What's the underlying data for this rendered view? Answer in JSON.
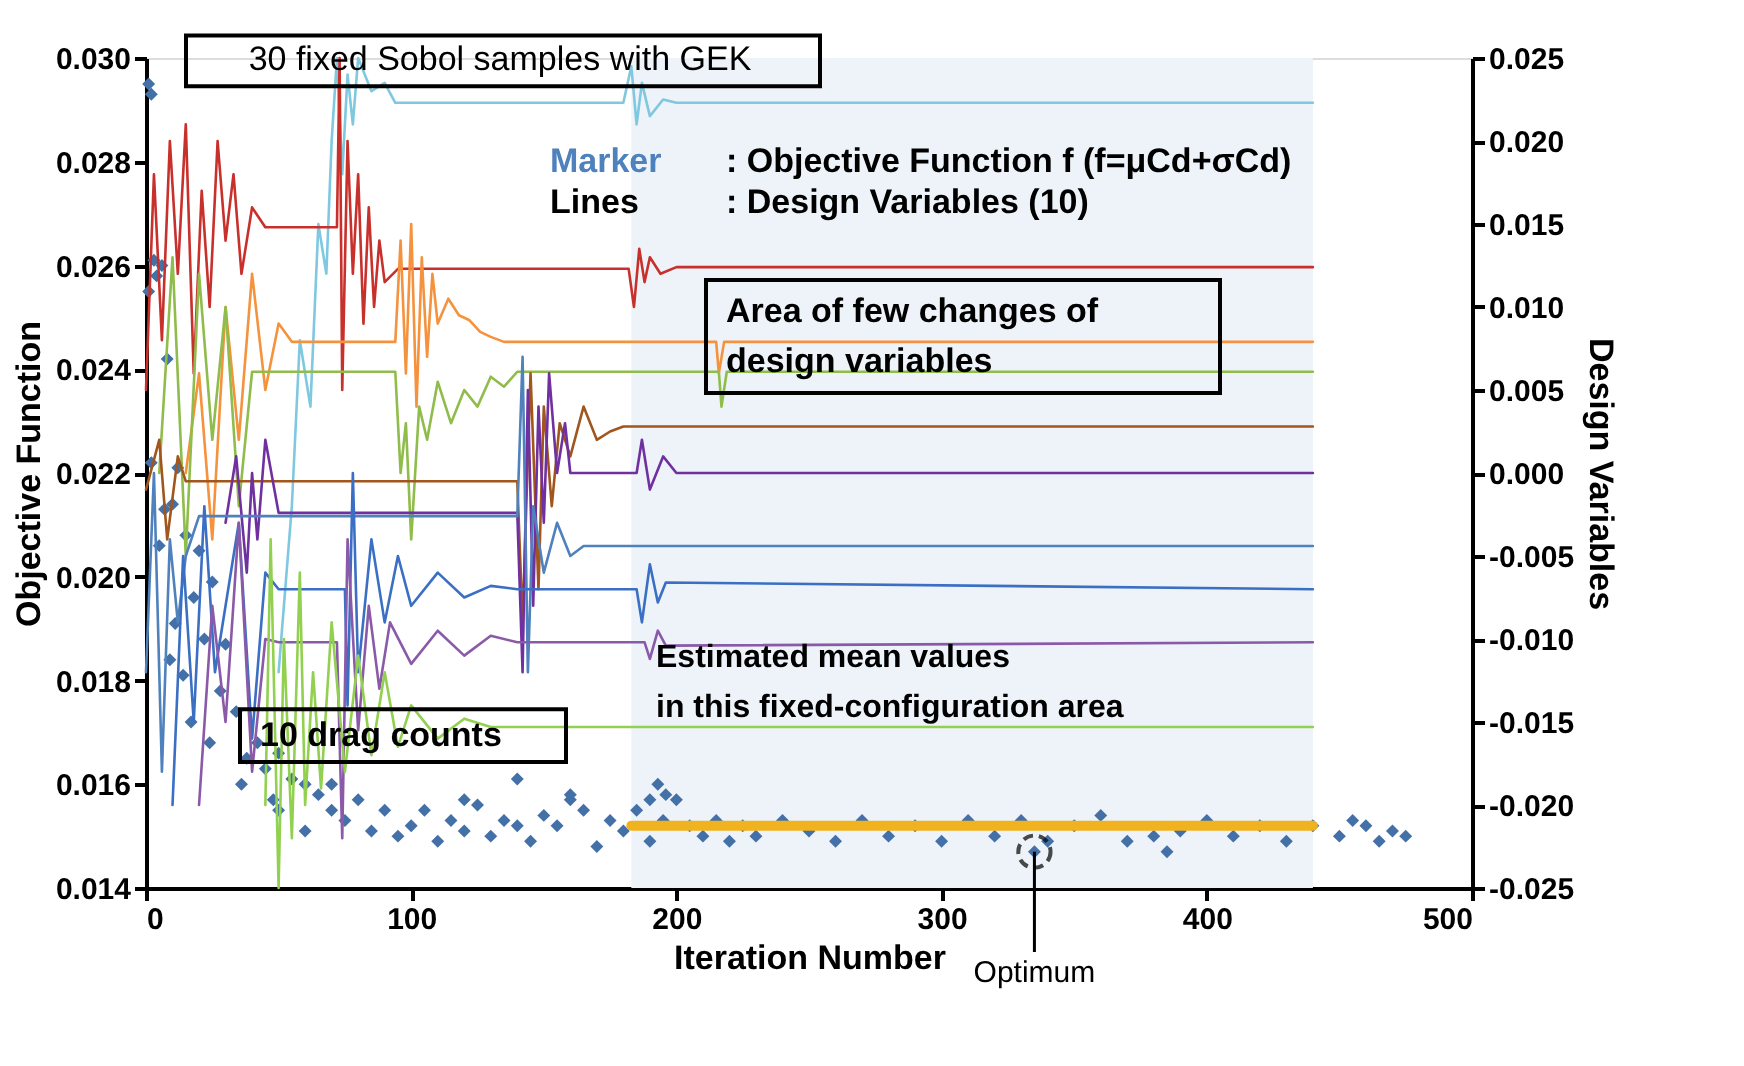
{
  "chart_data": {
    "type": "scatter",
    "xlabel": "Iteration Number",
    "ylabel": "Objective Function",
    "y2label": "Design Variables",
    "xlim": [
      0,
      500
    ],
    "xticks": [
      0,
      100,
      200,
      300,
      400,
      500
    ],
    "ylim": [
      0.014,
      0.03
    ],
    "yticks": [
      {
        "value": 0.014,
        "label": "0.014"
      },
      {
        "value": 0.016,
        "label": "0.016"
      },
      {
        "value": 0.018,
        "label": "0.018"
      },
      {
        "value": 0.02,
        "label": "0.020"
      },
      {
        "value": 0.022,
        "label": "0.022"
      },
      {
        "value": 0.024,
        "label": "0.024"
      },
      {
        "value": 0.026,
        "label": "0.026"
      },
      {
        "value": 0.028,
        "label": "0.028"
      },
      {
        "value": 0.03,
        "label": "0.030"
      }
    ],
    "y2lim": [
      -0.025,
      0.025
    ],
    "y2ticks": [
      {
        "value": -0.025,
        "label": "-0.025"
      },
      {
        "value": -0.02,
        "label": "-0.020"
      },
      {
        "value": -0.015,
        "label": "-0.015"
      },
      {
        "value": -0.01,
        "label": "-0.010"
      },
      {
        "value": -0.005,
        "label": "-0.005"
      },
      {
        "value": 0,
        "label": "0.000"
      },
      {
        "value": 0.005,
        "label": "0.005"
      },
      {
        "value": 0.01,
        "label": "0.010"
      },
      {
        "value": 0.015,
        "label": "0.015"
      },
      {
        "value": 0.02,
        "label": "0.020"
      },
      {
        "value": 0.025,
        "label": "0.025"
      }
    ],
    "grid": false,
    "bands": [
      {
        "axis": "x",
        "from": 183,
        "to": 440,
        "color": "#edf3f8"
      }
    ],
    "series": [
      {
        "marker": "diamond",
        "color": "#4470a8",
        "x": [
          1,
          2,
          3,
          1,
          4,
          6,
          8,
          2,
          10,
          12,
          5,
          7,
          15,
          20,
          25,
          18,
          11,
          22,
          9,
          14,
          30,
          28,
          34,
          17,
          24,
          38,
          42,
          45,
          50,
          36,
          55,
          48,
          60,
          65,
          70,
          75,
          80,
          85,
          90,
          95,
          100,
          105,
          110,
          115,
          120,
          125,
          130,
          135,
          140,
          145,
          150,
          155,
          160,
          165,
          170,
          175,
          180,
          185,
          190,
          195,
          200,
          205,
          210,
          215,
          220,
          225,
          230,
          240,
          250,
          260,
          270,
          280,
          290,
          300,
          310,
          320,
          330,
          335,
          340,
          350,
          360,
          370,
          380,
          385,
          390,
          400,
          410,
          420,
          430,
          440,
          450,
          455,
          460,
          465,
          470,
          475,
          140,
          160,
          50,
          60,
          70,
          120,
          190,
          196,
          193
        ],
        "values": [
          0.0295,
          0.0293,
          0.0261,
          0.0255,
          0.0258,
          0.026,
          0.0242,
          0.0222,
          0.0214,
          0.0221,
          0.0206,
          0.0213,
          0.0208,
          0.0205,
          0.0199,
          0.0196,
          0.0191,
          0.0188,
          0.0184,
          0.0181,
          0.0187,
          0.0178,
          0.0174,
          0.0172,
          0.0168,
          0.0165,
          0.0168,
          0.0163,
          0.0166,
          0.016,
          0.0161,
          0.0157,
          0.016,
          0.0158,
          0.0155,
          0.0153,
          0.0157,
          0.0151,
          0.0155,
          0.015,
          0.0152,
          0.0155,
          0.0149,
          0.0153,
          0.0151,
          0.0156,
          0.015,
          0.0153,
          0.0152,
          0.0149,
          0.0154,
          0.0152,
          0.0158,
          0.0155,
          0.0148,
          0.0153,
          0.0151,
          0.0155,
          0.0149,
          0.0153,
          0.0157,
          0.0152,
          0.015,
          0.0153,
          0.0149,
          0.0152,
          0.015,
          0.0153,
          0.0151,
          0.0149,
          0.0153,
          0.015,
          0.0152,
          0.0149,
          0.0153,
          0.015,
          0.0153,
          0.0147,
          0.0149,
          0.0152,
          0.0154,
          0.0149,
          0.015,
          0.0147,
          0.0151,
          0.0153,
          0.015,
          0.0152,
          0.0149,
          0.0152,
          0.015,
          0.0153,
          0.0152,
          0.0149,
          0.0151,
          0.015,
          0.0161,
          0.0157,
          0.0155,
          0.0151,
          0.016,
          0.0157,
          0.0157,
          0.0158,
          0.016
        ]
      },
      {
        "type": "line",
        "axis": "y2",
        "marker": "none",
        "line_style": "solid",
        "color": "#7fc8e0",
        "x": [
          50,
          55,
          58,
          62,
          65,
          68,
          70,
          72,
          74,
          76,
          78,
          80,
          85,
          90,
          94,
          150,
          180,
          183,
          185,
          187,
          190,
          195,
          200,
          440
        ],
        "values": [
          -0.012,
          -0.002,
          0.008,
          0.004,
          0.015,
          0.012,
          0.02,
          0.025,
          0.018,
          0.024,
          0.021,
          0.025,
          0.023,
          0.0235,
          0.0223,
          0.0223,
          0.0223,
          0.0245,
          0.021,
          0.0235,
          0.0215,
          0.0225,
          0.0223,
          0.0223
        ]
      },
      {
        "type": "line",
        "axis": "y2",
        "marker": "none",
        "line_style": "solid",
        "color": "#c8302c",
        "x": [
          0,
          3,
          6,
          9,
          12,
          15,
          18,
          21,
          24,
          27,
          30,
          33,
          36,
          40,
          45,
          72,
          73,
          74,
          76,
          78,
          80,
          82,
          84,
          86,
          88,
          90,
          95,
          182,
          184,
          186,
          188,
          190,
          194,
          200,
          440
        ],
        "values": [
          0.005,
          0.018,
          0.008,
          0.02,
          0.012,
          0.021,
          0.006,
          0.017,
          0.01,
          0.02,
          0.014,
          0.018,
          0.012,
          0.016,
          0.0148,
          0.0148,
          0.025,
          0.005,
          0.02,
          0.012,
          0.018,
          0.009,
          0.016,
          0.01,
          0.014,
          0.0115,
          0.0123,
          0.0123,
          0.01,
          0.0135,
          0.0115,
          0.013,
          0.012,
          0.0124,
          0.0124
        ]
      },
      {
        "type": "line",
        "axis": "y2",
        "marker": "none",
        "line_style": "solid",
        "color": "#f5923e",
        "x": [
          15,
          20,
          25,
          30,
          35,
          40,
          45,
          50,
          55,
          94,
          96,
          98,
          100,
          102,
          104,
          106,
          108,
          110,
          114,
          118,
          122,
          126,
          130,
          135,
          215,
          216,
          218,
          440
        ],
        "values": [
          0.0,
          0.006,
          -0.004,
          0.01,
          0.002,
          0.012,
          0.005,
          0.009,
          0.0079,
          0.0079,
          0.014,
          0.006,
          0.015,
          0.004,
          0.013,
          0.007,
          0.012,
          0.009,
          0.0105,
          0.0095,
          0.0092,
          0.0085,
          0.0082,
          0.0079,
          0.0079,
          0.006,
          0.0079,
          0.0079
        ]
      },
      {
        "type": "line",
        "axis": "y2",
        "marker": "none",
        "line_style": "solid",
        "color": "#8fbc4a",
        "x": [
          5,
          10,
          15,
          20,
          25,
          30,
          35,
          40,
          94,
          96,
          98,
          100,
          103,
          106,
          110,
          115,
          120,
          125,
          130,
          135,
          140,
          216,
          217,
          219,
          440
        ],
        "values": [
          0.0,
          0.013,
          -0.005,
          0.012,
          0.002,
          0.01,
          -0.002,
          0.0061,
          0.0061,
          0.0,
          0.003,
          -0.004,
          0.004,
          0.002,
          0.0055,
          0.003,
          0.005,
          0.004,
          0.0058,
          0.0052,
          0.0061,
          0.0061,
          0.004,
          0.0061,
          0.0061
        ]
      },
      {
        "type": "line",
        "axis": "y2",
        "marker": "none",
        "line_style": "solid",
        "color": "#a0561c",
        "x": [
          0,
          5,
          8,
          12,
          15,
          140,
          142,
          145,
          148,
          150,
          153,
          156,
          160,
          165,
          170,
          175,
          180,
          440
        ],
        "values": [
          -0.001,
          0.002,
          -0.004,
          0.001,
          -0.0005,
          -0.0005,
          -0.009,
          0.006,
          -0.007,
          0.004,
          -0.002,
          0.003,
          0.001,
          0.004,
          0.002,
          0.0025,
          0.0028,
          0.0028
        ]
      },
      {
        "type": "line",
        "axis": "y2",
        "marker": "none",
        "line_style": "solid",
        "color": "#7030a0",
        "x": [
          30,
          34,
          38,
          40,
          42,
          45,
          50,
          140,
          142,
          144,
          146,
          148,
          150,
          152,
          155,
          158,
          160,
          165,
          170,
          175,
          185,
          187,
          190,
          195,
          200,
          440
        ],
        "values": [
          -0.003,
          0.001,
          -0.006,
          0.0,
          -0.004,
          0.002,
          -0.0024,
          -0.0024,
          -0.012,
          0.005,
          -0.008,
          0.004,
          -0.003,
          0.006,
          0.0,
          0.003,
          0.0,
          0.0,
          0.0,
          0.0,
          0.0,
          0.002,
          -0.001,
          0.001,
          0.0,
          0.0
        ]
      },
      {
        "type": "line",
        "axis": "y2",
        "marker": "none",
        "line_style": "solid",
        "color": "#4f81bd",
        "x": [
          0,
          3,
          6,
          9,
          12,
          15,
          20,
          140,
          142,
          144,
          146,
          150,
          155,
          160,
          165,
          440
        ],
        "values": [
          -0.012,
          0.0,
          -0.018,
          -0.004,
          -0.009,
          -0.005,
          -0.0026,
          -0.0026,
          0.007,
          -0.012,
          -0.002,
          -0.006,
          -0.003,
          -0.005,
          -0.0044,
          -0.0044
        ]
      },
      {
        "type": "line",
        "axis": "y2",
        "marker": "none",
        "line_style": "solid",
        "color": "#3a6fc4",
        "x": [
          10,
          14,
          18,
          22,
          26,
          30,
          35,
          40,
          45,
          50,
          75,
          76,
          78,
          80,
          85,
          90,
          95,
          100,
          110,
          120,
          130,
          140,
          185,
          187,
          190,
          193,
          196,
          440
        ],
        "values": [
          -0.02,
          -0.005,
          -0.015,
          -0.002,
          -0.012,
          -0.008,
          -0.003,
          -0.016,
          -0.006,
          -0.007,
          -0.007,
          -0.014,
          0.0,
          -0.012,
          -0.004,
          -0.009,
          -0.005,
          -0.008,
          -0.006,
          -0.0075,
          -0.0068,
          -0.007,
          -0.007,
          -0.009,
          -0.0055,
          -0.0078,
          -0.0066,
          -0.007
        ]
      },
      {
        "type": "line",
        "axis": "y2",
        "marker": "none",
        "line_style": "solid",
        "color": "#8a5aa8",
        "x": [
          20,
          25,
          30,
          35,
          40,
          45,
          50,
          72,
          74,
          76,
          80,
          84,
          88,
          92,
          100,
          110,
          120,
          130,
          140,
          188,
          190,
          193,
          196,
          440
        ],
        "values": [
          -0.02,
          -0.008,
          -0.015,
          -0.003,
          -0.018,
          -0.01,
          -0.0102,
          -0.0102,
          -0.022,
          -0.004,
          -0.0155,
          -0.008,
          -0.013,
          -0.009,
          -0.0115,
          -0.0095,
          -0.011,
          -0.0098,
          -0.0102,
          -0.0102,
          -0.0112,
          -0.0095,
          -0.0104,
          -0.0102
        ]
      },
      {
        "type": "line",
        "axis": "y2",
        "marker": "none",
        "line_style": "solid",
        "color": "#92d050",
        "x": [
          45,
          47,
          50,
          52,
          55,
          58,
          60,
          63,
          66,
          70,
          75,
          80,
          85,
          90,
          95,
          100,
          110,
          120,
          130,
          440
        ],
        "values": [
          -0.02,
          -0.004,
          -0.025,
          -0.01,
          -0.022,
          -0.006,
          -0.02,
          -0.012,
          -0.019,
          -0.009,
          -0.018,
          -0.011,
          -0.017,
          -0.012,
          -0.0165,
          -0.014,
          -0.016,
          -0.0148,
          -0.0153,
          -0.0153
        ]
      },
      {
        "type": "line",
        "marker": "none",
        "line_style": "solid",
        "color": "#f0b21e",
        "x": [
          183,
          440
        ],
        "values": [
          0.0152,
          0.0152
        ]
      }
    ],
    "annotations": [
      "30 fixed Sobol samples with GEK",
      "Marker",
      ": Objective Function f (f=μCd+σCd)",
      "Lines",
      ": Design Variables (10)",
      "Area of few changes of\ndesign variables",
      "10 drag counts",
      "Estimated mean values\nin this fixed-configuration area",
      {
        "text": "Optimum",
        "x": 335,
        "y": 0.0147
      }
    ]
  }
}
